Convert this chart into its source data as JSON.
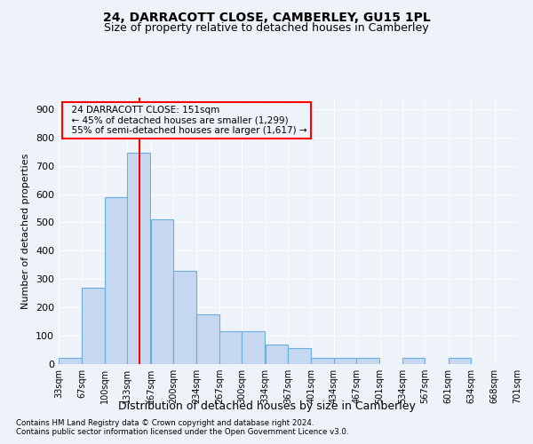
{
  "title1": "24, DARRACOTT CLOSE, CAMBERLEY, GU15 1PL",
  "title2": "Size of property relative to detached houses in Camberley",
  "xlabel": "Distribution of detached houses by size in Camberley",
  "ylabel": "Number of detached properties",
  "footnote1": "Contains HM Land Registry data © Crown copyright and database right 2024.",
  "footnote2": "Contains public sector information licensed under the Open Government Licence v3.0.",
  "annotation_line1": "24 DARRACOTT CLOSE: 151sqm",
  "annotation_line2": "← 45% of detached houses are smaller (1,299)",
  "annotation_line3": "55% of semi-detached houses are larger (1,617) →",
  "bar_color": "#c5d8f0",
  "bar_edge_color": "#6aaee0",
  "red_line_x": 151,
  "bin_edges": [
    33,
    67,
    100,
    133,
    167,
    200,
    234,
    267,
    300,
    334,
    367,
    401,
    434,
    467,
    501,
    534,
    567,
    601,
    634,
    668,
    701
  ],
  "bar_heights": [
    22,
    270,
    590,
    745,
    510,
    330,
    175,
    115,
    115,
    70,
    55,
    22,
    22,
    22,
    0,
    22,
    0,
    22,
    0,
    0
  ],
  "ylim": [
    0,
    940
  ],
  "yticks": [
    0,
    100,
    200,
    300,
    400,
    500,
    600,
    700,
    800,
    900
  ],
  "background_color": "#eef2f9",
  "plot_bg_color": "#eef2f9",
  "grid_color": "#ffffff",
  "title_fontsize": 10,
  "subtitle_fontsize": 9
}
